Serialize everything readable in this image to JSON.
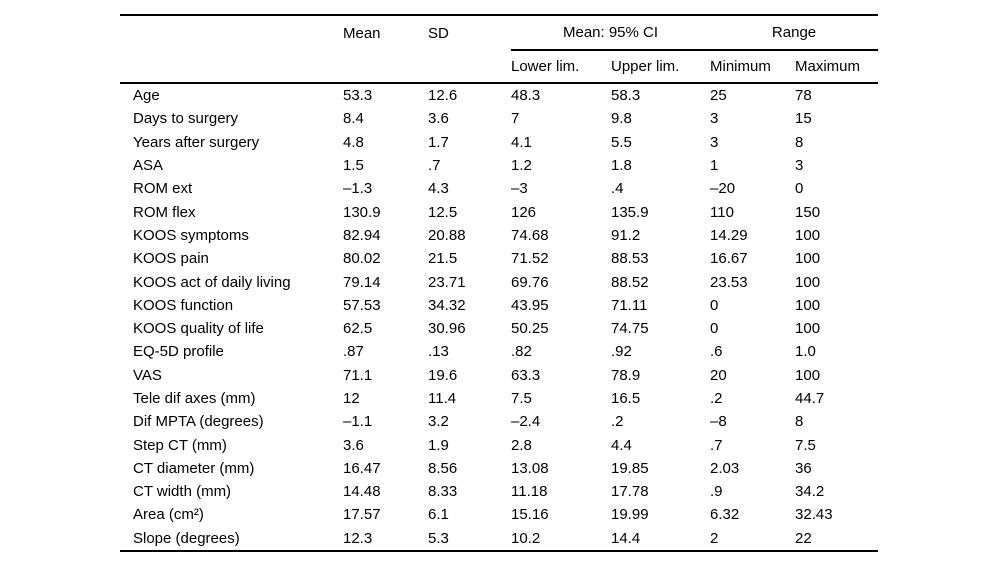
{
  "table": {
    "header": {
      "mean": "Mean",
      "sd": "SD",
      "ci_group": "Mean: 95% CI",
      "range_group": "Range",
      "lower": "Lower lim.",
      "upper": "Upper lim.",
      "minimum": "Minimum",
      "maximum": "Maximum"
    },
    "rows": [
      {
        "label": "Age",
        "values": [
          "53.3",
          "12.6",
          "48.3",
          "58.3",
          "25",
          "78"
        ]
      },
      {
        "label": "Days to surgery",
        "values": [
          "8.4",
          "3.6",
          "7",
          "9.8",
          "3",
          "15"
        ]
      },
      {
        "label": "Years after surgery",
        "values": [
          "4.8",
          "1.7",
          "4.1",
          "5.5",
          "3",
          "8"
        ]
      },
      {
        "label": "ASA",
        "values": [
          "1.5",
          ".7",
          "1.2",
          "1.8",
          "1",
          "3"
        ]
      },
      {
        "label": "ROM ext",
        "values": [
          "–1.3",
          "4.3",
          "–3",
          ".4",
          "–20",
          "0"
        ]
      },
      {
        "label": "ROM flex",
        "values": [
          "130.9",
          "12.5",
          "126",
          "135.9",
          "110",
          "150"
        ]
      },
      {
        "label": "KOOS symptoms",
        "values": [
          "82.94",
          "20.88",
          "74.68",
          "91.2",
          "14.29",
          "100"
        ]
      },
      {
        "label": "KOOS pain",
        "values": [
          "80.02",
          "21.5",
          "71.52",
          "88.53",
          "16.67",
          "100"
        ]
      },
      {
        "label": "KOOS act of daily living",
        "values": [
          "79.14",
          "23.71",
          "69.76",
          "88.52",
          "23.53",
          "100"
        ]
      },
      {
        "label": "KOOS function",
        "values": [
          "57.53",
          "34.32",
          "43.95",
          "71.11",
          "0",
          "100"
        ]
      },
      {
        "label": "KOOS quality of life",
        "values": [
          "62.5",
          "30.96",
          "50.25",
          "74.75",
          "0",
          "100"
        ]
      },
      {
        "label": "EQ-5D profile",
        "values": [
          ".87",
          ".13",
          ".82",
          ".92",
          ".6",
          "1.0"
        ]
      },
      {
        "label": "VAS",
        "values": [
          "71.1",
          "19.6",
          "63.3",
          "78.9",
          "20",
          "100"
        ]
      },
      {
        "label": "Tele dif axes (mm)",
        "values": [
          "12",
          "11.4",
          "7.5",
          "16.5",
          ".2",
          "44.7"
        ]
      },
      {
        "label": "Dif MPTA (degrees)",
        "values": [
          "–1.1",
          "3.2",
          "–2.4",
          ".2",
          "–8",
          "8"
        ]
      },
      {
        "label": "Step CT (mm)",
        "values": [
          "3.6",
          "1.9",
          "2.8",
          "4.4",
          ".7",
          "7.5"
        ]
      },
      {
        "label": "CT diameter (mm)",
        "values": [
          "16.47",
          "8.56",
          "13.08",
          "19.85",
          "2.03",
          "36"
        ]
      },
      {
        "label": "CT width (mm)",
        "values": [
          "14.48",
          "8.33",
          "11.18",
          "17.78",
          ".9",
          "34.2"
        ]
      },
      {
        "label": "Area (cm²)",
        "values": [
          "17.57",
          "6.1",
          "15.16",
          "19.99",
          "6.32",
          "32.43"
        ]
      },
      {
        "label": "Slope (degrees)",
        "values": [
          "12.3",
          "5.3",
          "10.2",
          "14.4",
          "2",
          "22"
        ]
      }
    ]
  }
}
